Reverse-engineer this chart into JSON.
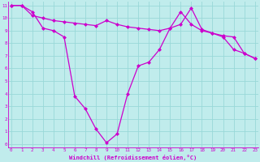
{
  "xlabel": "Windchill (Refroidissement éolien,°C)",
  "bg_color": "#c0ecec",
  "grid_color": "#99d8d8",
  "line_color": "#cc00cc",
  "line1_x": [
    0,
    1,
    2,
    3,
    4,
    5,
    6,
    7,
    8,
    9,
    10,
    11,
    12,
    13,
    14,
    15,
    16,
    17,
    18,
    19,
    20,
    21,
    22,
    23
  ],
  "line1_y": [
    11,
    11,
    10.5,
    9.2,
    9.0,
    8.5,
    3.8,
    2.8,
    1.2,
    0.1,
    0.8,
    4.0,
    6.2,
    6.5,
    7.5,
    9.2,
    10.5,
    9.5,
    9.0,
    8.8,
    8.5,
    7.5,
    7.2,
    6.8
  ],
  "line2_x": [
    0,
    1,
    2,
    3,
    4,
    5,
    6,
    7,
    8,
    9,
    10,
    11,
    12,
    13,
    14,
    15,
    16,
    17,
    18,
    19,
    20,
    21,
    22,
    23
  ],
  "line2_y": [
    11,
    11,
    10.2,
    10.0,
    9.8,
    9.7,
    9.6,
    9.5,
    9.4,
    9.8,
    9.5,
    9.3,
    9.2,
    9.1,
    9.0,
    9.2,
    9.5,
    10.8,
    9.1,
    8.8,
    8.6,
    8.5,
    7.2,
    6.8
  ],
  "xlim": [
    0,
    23
  ],
  "ylim": [
    0,
    11
  ],
  "xticks": [
    0,
    1,
    2,
    3,
    4,
    5,
    6,
    7,
    8,
    9,
    10,
    11,
    12,
    13,
    14,
    15,
    16,
    17,
    18,
    19,
    20,
    21,
    22,
    23
  ],
  "yticks": [
    0,
    1,
    2,
    3,
    4,
    5,
    6,
    7,
    8,
    9,
    10,
    11
  ],
  "tick_fontsize": 4.2,
  "xlabel_fontsize": 5.0
}
